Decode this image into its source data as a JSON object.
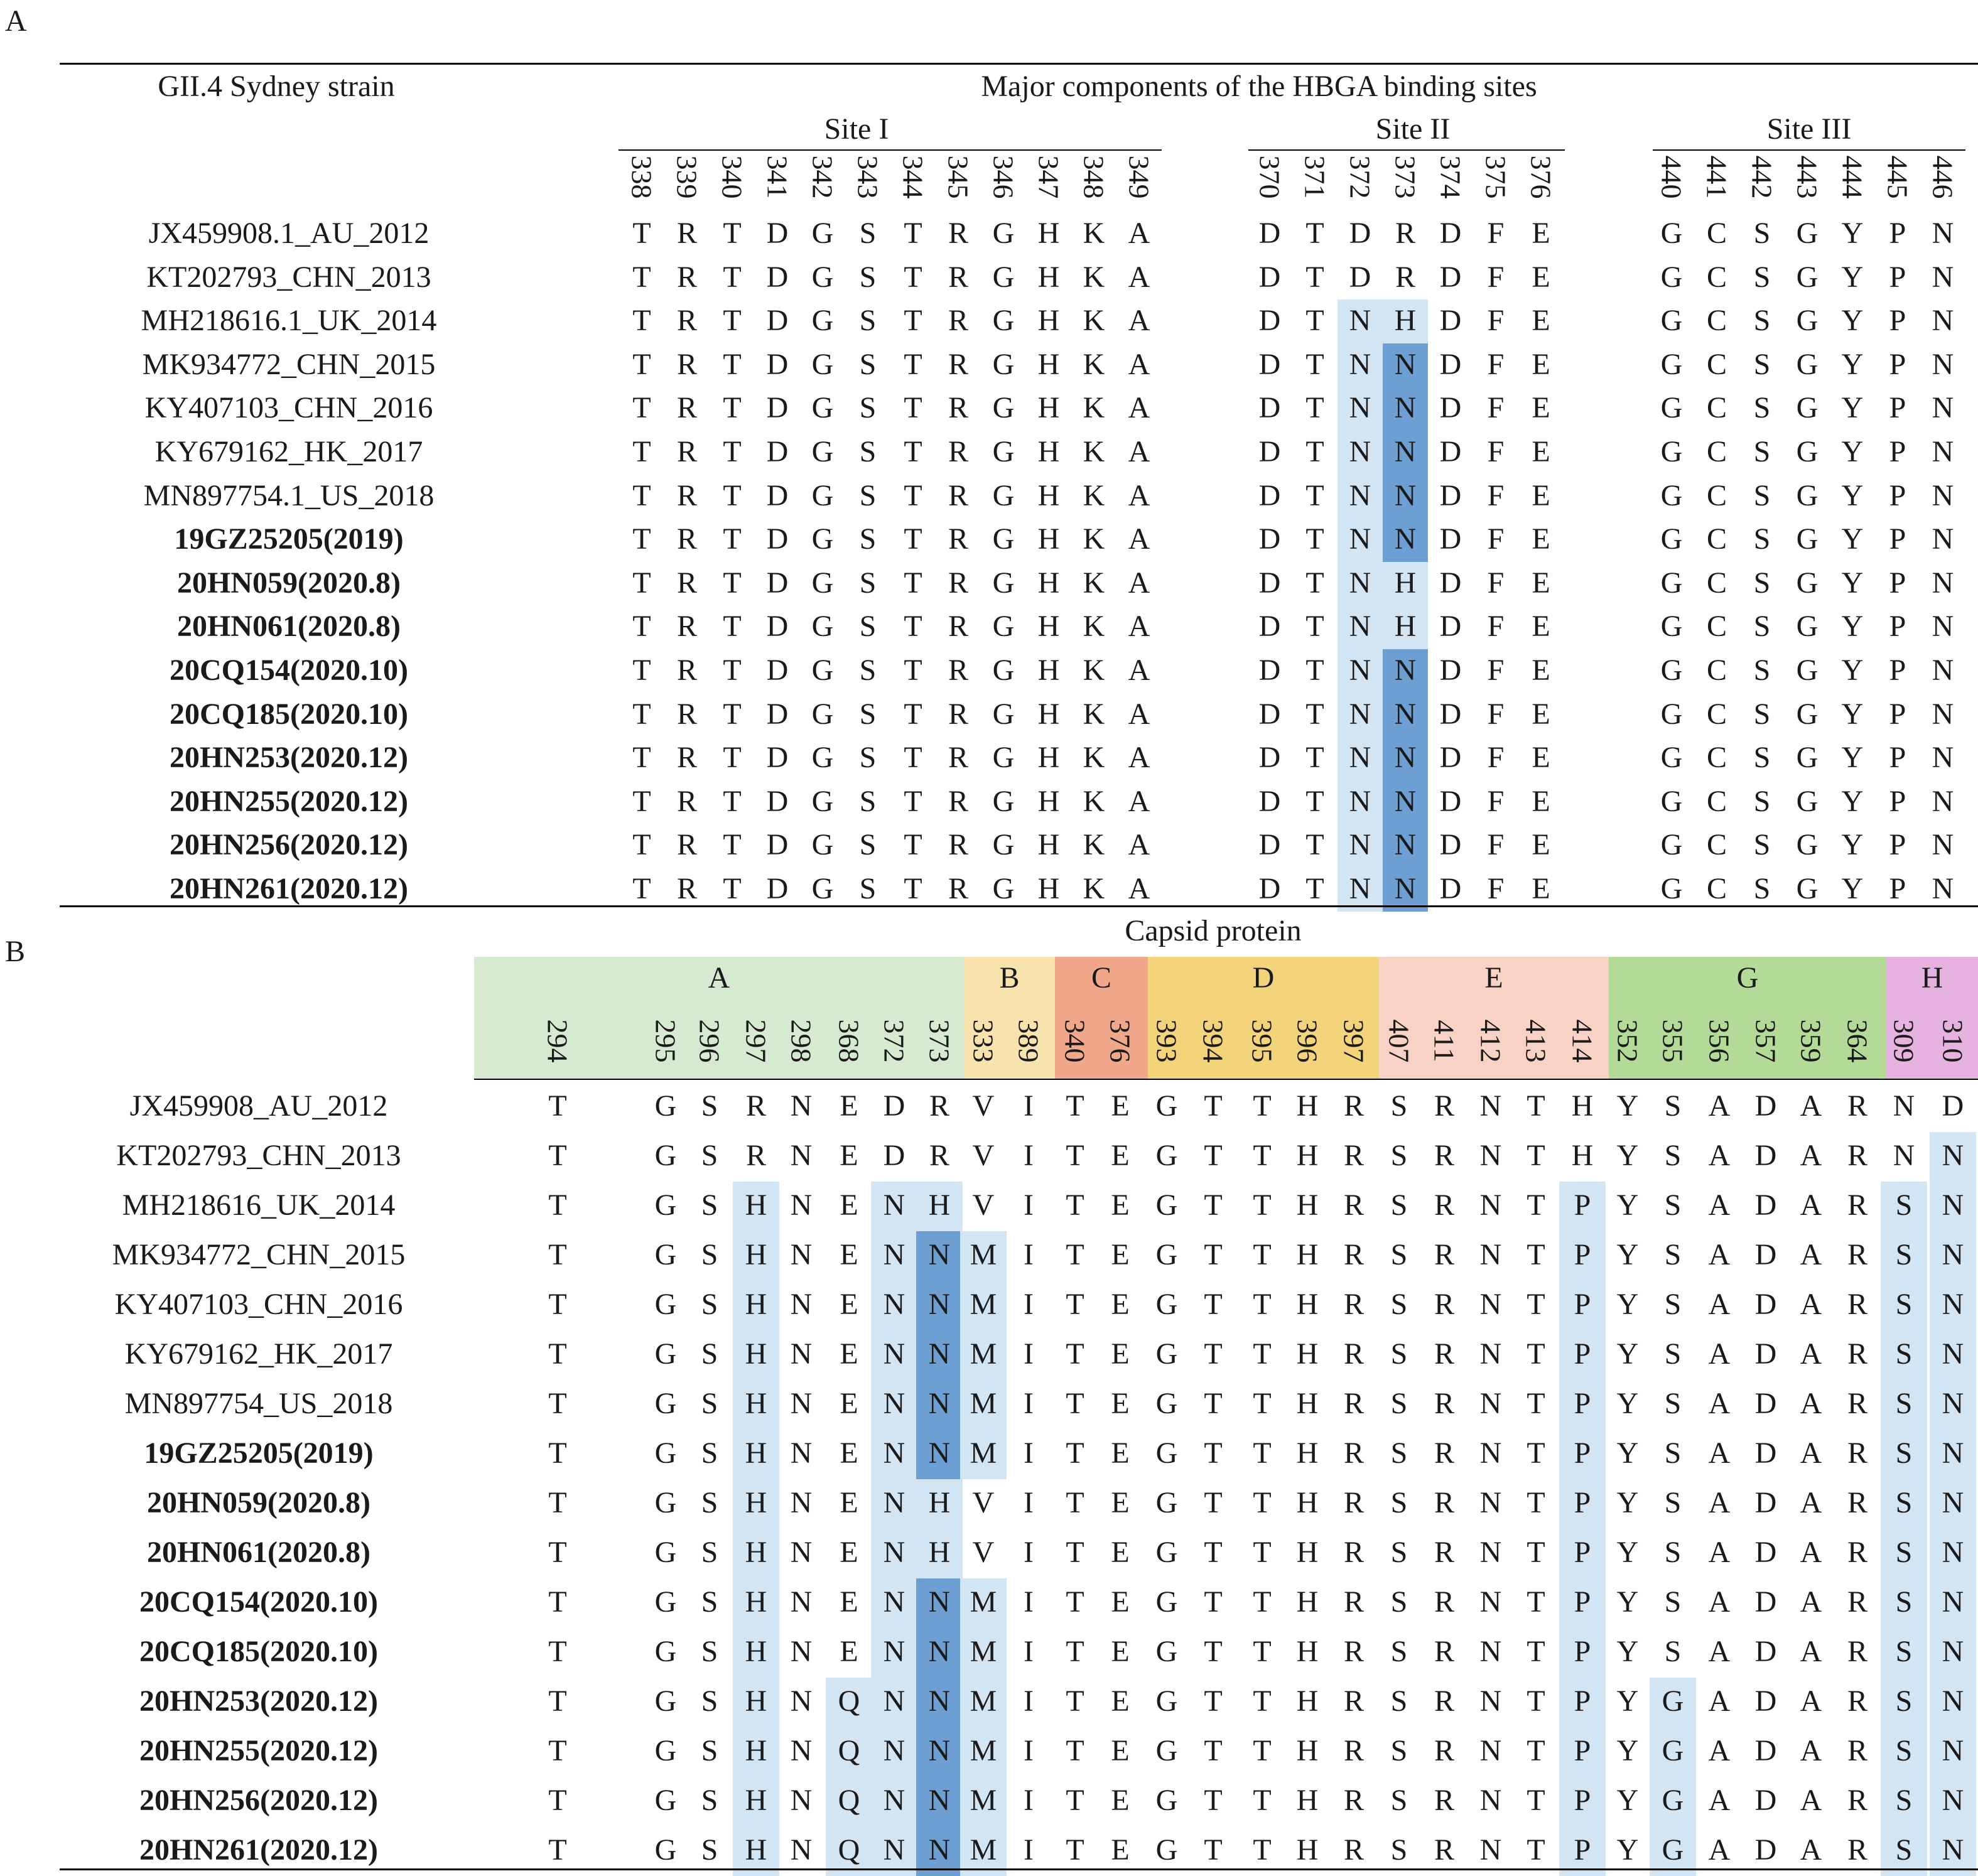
{
  "panelA": {
    "label": "A",
    "header_left": "GII.4 Sydney strain",
    "title": "Major components of the HBGA binding sites",
    "site_groups": [
      {
        "name": "Site I",
        "positions": [
          "338",
          "339",
          "340",
          "341",
          "342",
          "343",
          "344",
          "345",
          "346",
          "347",
          "348",
          "349"
        ]
      },
      {
        "name": "Site II",
        "positions": [
          "370",
          "371",
          "372",
          "373",
          "374",
          "375",
          "376"
        ]
      },
      {
        "name": "Site III",
        "positions": [
          "440",
          "441",
          "442",
          "443",
          "444",
          "445",
          "446"
        ]
      }
    ],
    "rows": [
      {
        "strain": "JX459908.1_AU_2012",
        "bold": false,
        "seq": [
          "T",
          "R",
          "T",
          "D",
          "G",
          "S",
          "T",
          "R",
          "G",
          "H",
          "K",
          "A",
          "D",
          "T",
          "D",
          "R",
          "D",
          "F",
          "E",
          "G",
          "C",
          "S",
          "G",
          "Y",
          "P",
          "N"
        ]
      },
      {
        "strain": "KT202793_CHN_2013",
        "bold": false,
        "seq": [
          "T",
          "R",
          "T",
          "D",
          "G",
          "S",
          "T",
          "R",
          "G",
          "H",
          "K",
          "A",
          "D",
          "T",
          "D",
          "R",
          "D",
          "F",
          "E",
          "G",
          "C",
          "S",
          "G",
          "Y",
          "P",
          "N"
        ]
      },
      {
        "strain": "MH218616.1_UK_2014",
        "bold": false,
        "seq": [
          "T",
          "R",
          "T",
          "D",
          "G",
          "S",
          "T",
          "R",
          "G",
          "H",
          "K",
          "A",
          "D",
          "T",
          "N",
          "H",
          "D",
          "F",
          "E",
          "G",
          "C",
          "S",
          "G",
          "Y",
          "P",
          "N"
        ]
      },
      {
        "strain": "MK934772_CHN_2015",
        "bold": false,
        "seq": [
          "T",
          "R",
          "T",
          "D",
          "G",
          "S",
          "T",
          "R",
          "G",
          "H",
          "K",
          "A",
          "D",
          "T",
          "N",
          "N",
          "D",
          "F",
          "E",
          "G",
          "C",
          "S",
          "G",
          "Y",
          "P",
          "N"
        ]
      },
      {
        "strain": "KY407103_CHN_2016",
        "bold": false,
        "seq": [
          "T",
          "R",
          "T",
          "D",
          "G",
          "S",
          "T",
          "R",
          "G",
          "H",
          "K",
          "A",
          "D",
          "T",
          "N",
          "N",
          "D",
          "F",
          "E",
          "G",
          "C",
          "S",
          "G",
          "Y",
          "P",
          "N"
        ]
      },
      {
        "strain": "KY679162_HK_2017",
        "bold": false,
        "seq": [
          "T",
          "R",
          "T",
          "D",
          "G",
          "S",
          "T",
          "R",
          "G",
          "H",
          "K",
          "A",
          "D",
          "T",
          "N",
          "N",
          "D",
          "F",
          "E",
          "G",
          "C",
          "S",
          "G",
          "Y",
          "P",
          "N"
        ]
      },
      {
        "strain": "MN897754.1_US_2018",
        "bold": false,
        "seq": [
          "T",
          "R",
          "T",
          "D",
          "G",
          "S",
          "T",
          "R",
          "G",
          "H",
          "K",
          "A",
          "D",
          "T",
          "N",
          "N",
          "D",
          "F",
          "E",
          "G",
          "C",
          "S",
          "G",
          "Y",
          "P",
          "N"
        ]
      },
      {
        "strain": "19GZ25205(2019)",
        "bold": true,
        "seq": [
          "T",
          "R",
          "T",
          "D",
          "G",
          "S",
          "T",
          "R",
          "G",
          "H",
          "K",
          "A",
          "D",
          "T",
          "N",
          "N",
          "D",
          "F",
          "E",
          "G",
          "C",
          "S",
          "G",
          "Y",
          "P",
          "N"
        ]
      },
      {
        "strain": "20HN059(2020.8)",
        "bold": true,
        "seq": [
          "T",
          "R",
          "T",
          "D",
          "G",
          "S",
          "T",
          "R",
          "G",
          "H",
          "K",
          "A",
          "D",
          "T",
          "N",
          "H",
          "D",
          "F",
          "E",
          "G",
          "C",
          "S",
          "G",
          "Y",
          "P",
          "N"
        ]
      },
      {
        "strain": "20HN061(2020.8)",
        "bold": true,
        "seq": [
          "T",
          "R",
          "T",
          "D",
          "G",
          "S",
          "T",
          "R",
          "G",
          "H",
          "K",
          "A",
          "D",
          "T",
          "N",
          "H",
          "D",
          "F",
          "E",
          "G",
          "C",
          "S",
          "G",
          "Y",
          "P",
          "N"
        ]
      },
      {
        "strain": "20CQ154(2020.10)",
        "bold": true,
        "seq": [
          "T",
          "R",
          "T",
          "D",
          "G",
          "S",
          "T",
          "R",
          "G",
          "H",
          "K",
          "A",
          "D",
          "T",
          "N",
          "N",
          "D",
          "F",
          "E",
          "G",
          "C",
          "S",
          "G",
          "Y",
          "P",
          "N"
        ]
      },
      {
        "strain": "20CQ185(2020.10)",
        "bold": true,
        "seq": [
          "T",
          "R",
          "T",
          "D",
          "G",
          "S",
          "T",
          "R",
          "G",
          "H",
          "K",
          "A",
          "D",
          "T",
          "N",
          "N",
          "D",
          "F",
          "E",
          "G",
          "C",
          "S",
          "G",
          "Y",
          "P",
          "N"
        ]
      },
      {
        "strain": "20HN253(2020.12)",
        "bold": true,
        "seq": [
          "T",
          "R",
          "T",
          "D",
          "G",
          "S",
          "T",
          "R",
          "G",
          "H",
          "K",
          "A",
          "D",
          "T",
          "N",
          "N",
          "D",
          "F",
          "E",
          "G",
          "C",
          "S",
          "G",
          "Y",
          "P",
          "N"
        ]
      },
      {
        "strain": "20HN255(2020.12)",
        "bold": true,
        "seq": [
          "T",
          "R",
          "T",
          "D",
          "G",
          "S",
          "T",
          "R",
          "G",
          "H",
          "K",
          "A",
          "D",
          "T",
          "N",
          "N",
          "D",
          "F",
          "E",
          "G",
          "C",
          "S",
          "G",
          "Y",
          "P",
          "N"
        ]
      },
      {
        "strain": "20HN256(2020.12)",
        "bold": true,
        "seq": [
          "T",
          "R",
          "T",
          "D",
          "G",
          "S",
          "T",
          "R",
          "G",
          "H",
          "K",
          "A",
          "D",
          "T",
          "N",
          "N",
          "D",
          "F",
          "E",
          "G",
          "C",
          "S",
          "G",
          "Y",
          "P",
          "N"
        ]
      },
      {
        "strain": "20HN261(2020.12)",
        "bold": true,
        "seq": [
          "T",
          "R",
          "T",
          "D",
          "G",
          "S",
          "T",
          "R",
          "G",
          "H",
          "K",
          "A",
          "D",
          "T",
          "N",
          "N",
          "D",
          "F",
          "E",
          "G",
          "C",
          "S",
          "G",
          "Y",
          "P",
          "N"
        ]
      }
    ]
  },
  "panelB": {
    "label": "B",
    "title": "Capsid protein",
    "epitope_groups": [
      {
        "name": "A",
        "color": "#d5ead0",
        "positions": [
          "294",
          "295",
          "296",
          "297",
          "298",
          "368",
          "372",
          "373"
        ]
      },
      {
        "name": "B",
        "color": "#f8e2ad",
        "positions": [
          "333",
          "389"
        ]
      },
      {
        "name": "C",
        "color": "#f1a88a",
        "positions": [
          "340",
          "376"
        ]
      },
      {
        "name": "D",
        "color": "#f4d47a",
        "positions": [
          "393",
          "394",
          "395",
          "396",
          "397"
        ]
      },
      {
        "name": "E",
        "color": "#f8d2c4",
        "positions": [
          "407",
          "411",
          "412",
          "413",
          "414"
        ]
      },
      {
        "name": "G",
        "color": "#b3da96",
        "positions": [
          "352",
          "355",
          "356",
          "357",
          "359",
          "364"
        ]
      },
      {
        "name": "H",
        "color": "#e6b2e0",
        "positions": [
          "309",
          "310"
        ]
      }
    ],
    "rows": [
      {
        "strain": "JX459908_AU_2012",
        "bold": false,
        "seq": [
          "T",
          "G",
          "S",
          "R",
          "N",
          "E",
          "D",
          "R",
          "V",
          "I",
          "T",
          "E",
          "G",
          "T",
          "T",
          "H",
          "R",
          "S",
          "R",
          "N",
          "T",
          "H",
          "Y",
          "S",
          "A",
          "D",
          "A",
          "R",
          "N",
          "D"
        ]
      },
      {
        "strain": "KT202793_CHN_2013",
        "bold": false,
        "seq": [
          "T",
          "G",
          "S",
          "R",
          "N",
          "E",
          "D",
          "R",
          "V",
          "I",
          "T",
          "E",
          "G",
          "T",
          "T",
          "H",
          "R",
          "S",
          "R",
          "N",
          "T",
          "H",
          "Y",
          "S",
          "A",
          "D",
          "A",
          "R",
          "N",
          "N"
        ]
      },
      {
        "strain": "MH218616_UK_2014",
        "bold": false,
        "seq": [
          "T",
          "G",
          "S",
          "H",
          "N",
          "E",
          "N",
          "H",
          "V",
          "I",
          "T",
          "E",
          "G",
          "T",
          "T",
          "H",
          "R",
          "S",
          "R",
          "N",
          "T",
          "P",
          "Y",
          "S",
          "A",
          "D",
          "A",
          "R",
          "S",
          "N"
        ]
      },
      {
        "strain": "MK934772_CHN_2015",
        "bold": false,
        "seq": [
          "T",
          "G",
          "S",
          "H",
          "N",
          "E",
          "N",
          "N",
          "M",
          "I",
          "T",
          "E",
          "G",
          "T",
          "T",
          "H",
          "R",
          "S",
          "R",
          "N",
          "T",
          "P",
          "Y",
          "S",
          "A",
          "D",
          "A",
          "R",
          "S",
          "N"
        ]
      },
      {
        "strain": "KY407103_CHN_2016",
        "bold": false,
        "seq": [
          "T",
          "G",
          "S",
          "H",
          "N",
          "E",
          "N",
          "N",
          "M",
          "I",
          "T",
          "E",
          "G",
          "T",
          "T",
          "H",
          "R",
          "S",
          "R",
          "N",
          "T",
          "P",
          "Y",
          "S",
          "A",
          "D",
          "A",
          "R",
          "S",
          "N"
        ]
      },
      {
        "strain": "KY679162_HK_2017",
        "bold": false,
        "seq": [
          "T",
          "G",
          "S",
          "H",
          "N",
          "E",
          "N",
          "N",
          "M",
          "I",
          "T",
          "E",
          "G",
          "T",
          "T",
          "H",
          "R",
          "S",
          "R",
          "N",
          "T",
          "P",
          "Y",
          "S",
          "A",
          "D",
          "A",
          "R",
          "S",
          "N"
        ]
      },
      {
        "strain": "MN897754_US_2018",
        "bold": false,
        "seq": [
          "T",
          "G",
          "S",
          "H",
          "N",
          "E",
          "N",
          "N",
          "M",
          "I",
          "T",
          "E",
          "G",
          "T",
          "T",
          "H",
          "R",
          "S",
          "R",
          "N",
          "T",
          "P",
          "Y",
          "S",
          "A",
          "D",
          "A",
          "R",
          "S",
          "N"
        ]
      },
      {
        "strain": "19GZ25205(2019)",
        "bold": true,
        "seq": [
          "T",
          "G",
          "S",
          "H",
          "N",
          "E",
          "N",
          "N",
          "M",
          "I",
          "T",
          "E",
          "G",
          "T",
          "T",
          "H",
          "R",
          "S",
          "R",
          "N",
          "T",
          "P",
          "Y",
          "S",
          "A",
          "D",
          "A",
          "R",
          "S",
          "N"
        ]
      },
      {
        "strain": "20HN059(2020.8)",
        "bold": true,
        "seq": [
          "T",
          "G",
          "S",
          "H",
          "N",
          "E",
          "N",
          "H",
          "V",
          "I",
          "T",
          "E",
          "G",
          "T",
          "T",
          "H",
          "R",
          "S",
          "R",
          "N",
          "T",
          "P",
          "Y",
          "S",
          "A",
          "D",
          "A",
          "R",
          "S",
          "N"
        ]
      },
      {
        "strain": "20HN061(2020.8)",
        "bold": true,
        "seq": [
          "T",
          "G",
          "S",
          "H",
          "N",
          "E",
          "N",
          "H",
          "V",
          "I",
          "T",
          "E",
          "G",
          "T",
          "T",
          "H",
          "R",
          "S",
          "R",
          "N",
          "T",
          "P",
          "Y",
          "S",
          "A",
          "D",
          "A",
          "R",
          "S",
          "N"
        ]
      },
      {
        "strain": "20CQ154(2020.10)",
        "bold": true,
        "seq": [
          "T",
          "G",
          "S",
          "H",
          "N",
          "E",
          "N",
          "N",
          "M",
          "I",
          "T",
          "E",
          "G",
          "T",
          "T",
          "H",
          "R",
          "S",
          "R",
          "N",
          "T",
          "P",
          "Y",
          "S",
          "A",
          "D",
          "A",
          "R",
          "S",
          "N"
        ]
      },
      {
        "strain": "20CQ185(2020.10)",
        "bold": true,
        "seq": [
          "T",
          "G",
          "S",
          "H",
          "N",
          "E",
          "N",
          "N",
          "M",
          "I",
          "T",
          "E",
          "G",
          "T",
          "T",
          "H",
          "R",
          "S",
          "R",
          "N",
          "T",
          "P",
          "Y",
          "S",
          "A",
          "D",
          "A",
          "R",
          "S",
          "N"
        ]
      },
      {
        "strain": "20HN253(2020.12)",
        "bold": true,
        "seq": [
          "T",
          "G",
          "S",
          "H",
          "N",
          "Q",
          "N",
          "N",
          "M",
          "I",
          "T",
          "E",
          "G",
          "T",
          "T",
          "H",
          "R",
          "S",
          "R",
          "N",
          "T",
          "P",
          "Y",
          "G",
          "A",
          "D",
          "A",
          "R",
          "S",
          "N"
        ]
      },
      {
        "strain": "20HN255(2020.12)",
        "bold": true,
        "seq": [
          "T",
          "G",
          "S",
          "H",
          "N",
          "Q",
          "N",
          "N",
          "M",
          "I",
          "T",
          "E",
          "G",
          "T",
          "T",
          "H",
          "R",
          "S",
          "R",
          "N",
          "T",
          "P",
          "Y",
          "G",
          "A",
          "D",
          "A",
          "R",
          "S",
          "N"
        ]
      },
      {
        "strain": "20HN256(2020.12)",
        "bold": true,
        "seq": [
          "T",
          "G",
          "S",
          "H",
          "N",
          "Q",
          "N",
          "N",
          "M",
          "I",
          "T",
          "E",
          "G",
          "T",
          "T",
          "H",
          "R",
          "S",
          "R",
          "N",
          "T",
          "P",
          "Y",
          "G",
          "A",
          "D",
          "A",
          "R",
          "S",
          "N"
        ]
      },
      {
        "strain": "20HN261(2020.12)",
        "bold": true,
        "seq": [
          "T",
          "G",
          "S",
          "H",
          "N",
          "Q",
          "N",
          "N",
          "M",
          "I",
          "T",
          "E",
          "G",
          "T",
          "T",
          "H",
          "R",
          "S",
          "R",
          "N",
          "T",
          "P",
          "Y",
          "G",
          "A",
          "D",
          "A",
          "R",
          "S",
          "N"
        ]
      }
    ]
  },
  "colors": {
    "highlight_light": "#d3e5f3",
    "highlight_dark": "#6d9fd3"
  }
}
